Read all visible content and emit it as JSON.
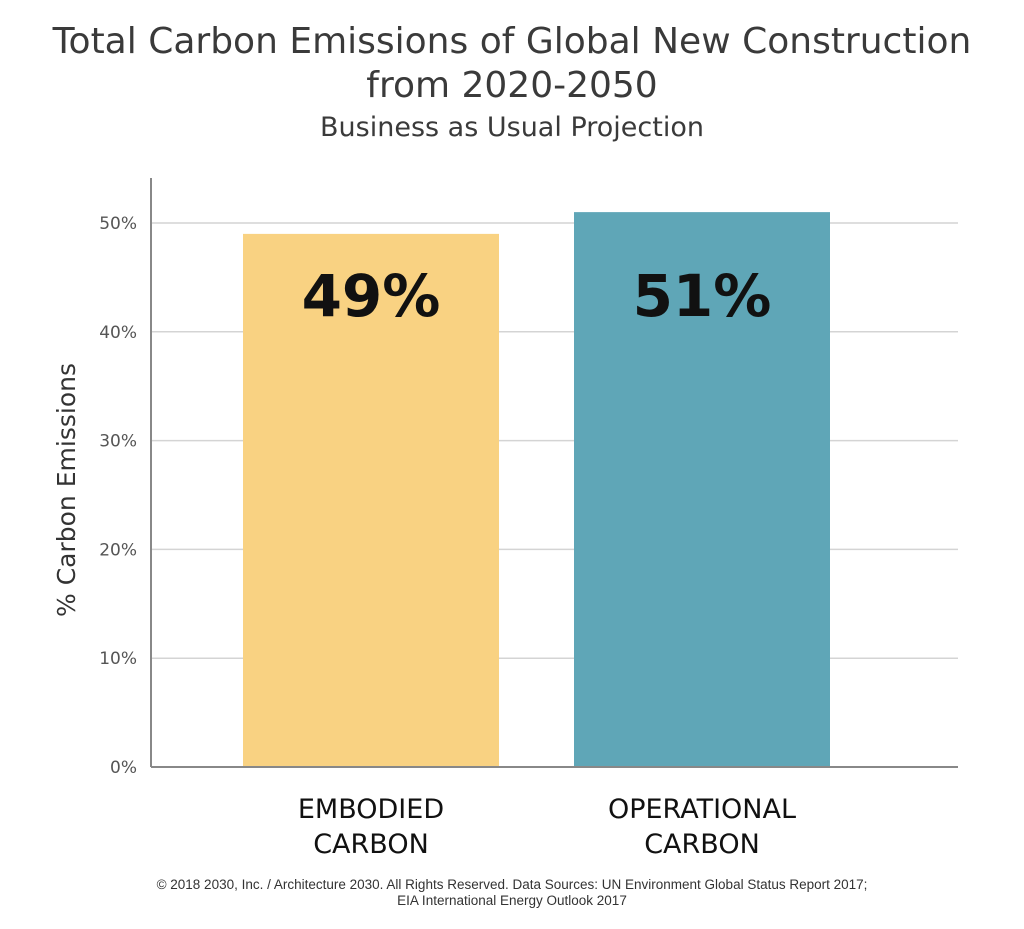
{
  "chart_data": {
    "type": "bar",
    "title_line1": "Total Carbon Emissions of Global New Construction",
    "title_line2": "from 2020-2050",
    "subtitle": "Business as Usual Projection",
    "ylabel": "% Carbon Emissions",
    "xlabel": "",
    "ylim": [
      0,
      54
    ],
    "yticks": [
      0,
      10,
      20,
      30,
      40,
      50
    ],
    "ytick_labels": [
      "0%",
      "10%",
      "20%",
      "30%",
      "40%",
      "50%"
    ],
    "grid": true,
    "categories": [
      [
        "EMBODIED",
        "CARBON"
      ],
      [
        "OPERATIONAL",
        "CARBON"
      ]
    ],
    "values": [
      49,
      51
    ],
    "data_labels": [
      "49%",
      "51%"
    ],
    "colors": [
      "#F9D282",
      "#5FA6B7"
    ]
  },
  "footer": {
    "line1": "© 2018 2030, Inc. / Architecture 2030. All Rights Reserved. Data Sources: UN Environment Global Status Report 2017;",
    "line2": "EIA International Energy Outlook 2017"
  }
}
